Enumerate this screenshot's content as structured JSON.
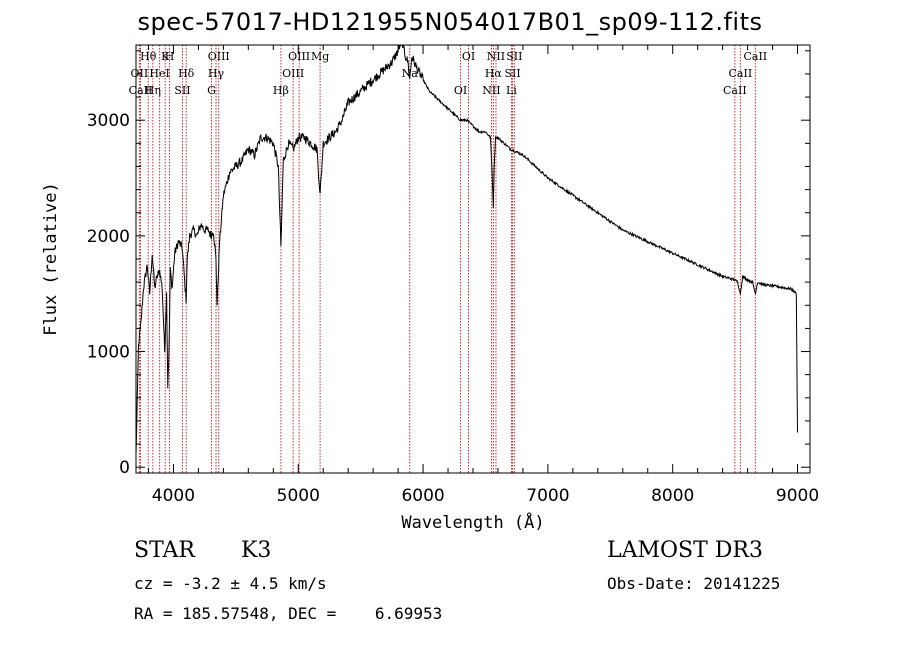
{
  "chart_data": {
    "type": "line",
    "title": "spec-57017-HD121955N054017B01_sp09-112.fits",
    "xlabel": "Wavelength (Å)",
    "ylabel": "Flux (relative)",
    "xlim": [
      3700,
      9100
    ],
    "ylim": [
      -50,
      3650
    ],
    "xticks": [
      4000,
      5000,
      6000,
      7000,
      8000,
      9000
    ],
    "yticks": [
      0,
      1000,
      2000,
      3000
    ],
    "series": [
      {
        "name": "flux",
        "x": [
          3700,
          3720,
          3740,
          3760,
          3790,
          3810,
          3830,
          3850,
          3870,
          3890,
          3910,
          3930,
          3945,
          3955,
          3965,
          3975,
          3990,
          4010,
          4040,
          4070,
          4090,
          4101,
          4110,
          4130,
          4160,
          4190,
          4220,
          4250,
          4280,
          4300,
          4320,
          4340,
          4350,
          4370,
          4400,
          4450,
          4500,
          4550,
          4600,
          4650,
          4700,
          4750,
          4800,
          4840,
          4861,
          4880,
          4920,
          4960,
          5000,
          5050,
          5100,
          5150,
          5175,
          5200,
          5250,
          5300,
          5350,
          5400,
          5450,
          5500,
          5550,
          5600,
          5650,
          5700,
          5750,
          5800,
          5830,
          5860,
          5880,
          5893,
          5910,
          5950,
          6000,
          6050,
          6100,
          6150,
          6200,
          6250,
          6300,
          6350,
          6400,
          6450,
          6500,
          6540,
          6555,
          6563,
          6570,
          6580,
          6600,
          6650,
          6700,
          6800,
          6900,
          7000,
          7200,
          7400,
          7600,
          7800,
          8000,
          8200,
          8400,
          8498,
          8520,
          8542,
          8560,
          8600,
          8640,
          8662,
          8680,
          8720,
          8780,
          8850,
          8900,
          8950,
          8990,
          9000
        ],
        "y": [
          100,
          1050,
          1250,
          1550,
          1750,
          1500,
          1850,
          1550,
          1650,
          1700,
          1550,
          1000,
          1500,
          700,
          1050,
          1700,
          1550,
          1850,
          1950,
          1900,
          1600,
          1450,
          1800,
          2000,
          2050,
          2000,
          2100,
          2050,
          2050,
          2000,
          2050,
          1800,
          1400,
          1950,
          2350,
          2550,
          2600,
          2650,
          2750,
          2700,
          2850,
          2850,
          2800,
          2600,
          1900,
          2650,
          2800,
          2750,
          2850,
          2850,
          2800,
          2750,
          2350,
          2800,
          2850,
          2900,
          3000,
          3150,
          3200,
          3250,
          3300,
          3350,
          3400,
          3450,
          3500,
          3600,
          3700,
          3550,
          3500,
          3350,
          3550,
          3450,
          3350,
          3250,
          3200,
          3150,
          3100,
          3050,
          3000,
          3000,
          2950,
          2900,
          2900,
          2850,
          2500,
          2250,
          2600,
          2850,
          2850,
          2800,
          2750,
          2700,
          2600,
          2500,
          2350,
          2200,
          2050,
          1950,
          1850,
          1750,
          1650,
          1620,
          1600,
          1500,
          1650,
          1620,
          1600,
          1500,
          1600,
          1580,
          1570,
          1560,
          1550,
          1540,
          1500,
          300
        ]
      }
    ],
    "line_labels": [
      {
        "label": "Hθ",
        "x": 3798
      },
      {
        "label": "OII",
        "x": 3727
      },
      {
        "label": "CaII",
        "x": 3736
      },
      {
        "label": "K",
        "x": 3934
      },
      {
        "label": "HeI",
        "x": 3889
      },
      {
        "label": "Hη",
        "x": 3835
      },
      {
        "label": "H",
        "x": 3969
      },
      {
        "label": "Hδ",
        "x": 4102
      },
      {
        "label": "SII",
        "x": 4072
      },
      {
        "label": "OIII",
        "x": 4363
      },
      {
        "label": "Hγ",
        "x": 4341
      },
      {
        "label": "G",
        "x": 4305
      },
      {
        "label": "OIII",
        "x": 5007
      },
      {
        "label": "OIII",
        "x": 4959
      },
      {
        "label": "Hβ",
        "x": 4861
      },
      {
        "label": "Mg",
        "x": 5175
      },
      {
        "label": "Na",
        "x": 5893
      },
      {
        "label": "OI",
        "x": 6300
      },
      {
        "label": "OI",
        "x": 6364
      },
      {
        "label": "Hα",
        "x": 6563
      },
      {
        "label": "NII",
        "x": 6548
      },
      {
        "label": "NII",
        "x": 6584
      },
      {
        "label": "SII",
        "x": 6717
      },
      {
        "label": "Li",
        "x": 6708
      },
      {
        "label": "SII",
        "x": 6731
      },
      {
        "label": "CaII",
        "x": 8542
      },
      {
        "label": "CaII",
        "x": 8498
      },
      {
        "label": "CaII",
        "x": 8662
      }
    ]
  },
  "footer": {
    "object_class": "STAR",
    "subclass": "K3",
    "survey": "LAMOST DR3",
    "cz": "cz = -3.2 ± 4.5 km/s",
    "obs_date": "Obs-Date: 20141225",
    "coords": "RA = 185.57548, DEC =    6.69953"
  },
  "colors": {
    "spectrum": "#000000",
    "marker": "#c03030",
    "axes": "#000000"
  }
}
